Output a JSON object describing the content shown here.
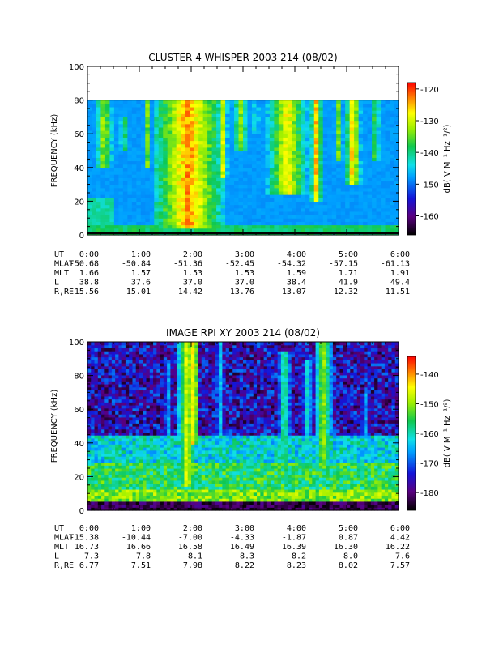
{
  "chart_data": [
    {
      "type": "heatmap",
      "title": "CLUSTER 4 WHISPER 2003 214 (08/02)",
      "ylabel": "FREQUENCY (kHz)",
      "ylim": [
        0,
        100
      ],
      "yticks": [
        "0",
        "20",
        "40",
        "60",
        "80",
        "100"
      ],
      "xlim_hours": [
        0,
        6
      ],
      "data_fmax_khz": 80,
      "colorbar": {
        "label": "dB( V M⁻¹ Hz⁻¹/²)",
        "range": [
          -166,
          -118
        ],
        "ticks": [
          "-120",
          "-130",
          "-140",
          "-150",
          "-160"
        ]
      },
      "bursts": [
        {
          "t": 0.33,
          "w": 0.22,
          "top": 80,
          "base": 40,
          "peak": -128
        },
        {
          "t": 0.7,
          "w": 0.12,
          "top": 70,
          "base": 50,
          "peak": -132
        },
        {
          "t": 1.15,
          "w": 0.08,
          "top": 80,
          "base": 40,
          "peak": -130
        },
        {
          "t": 1.95,
          "w": 0.7,
          "top": 80,
          "base": 4,
          "peak": -120
        },
        {
          "t": 2.62,
          "w": 0.1,
          "top": 80,
          "base": 35,
          "peak": -126
        },
        {
          "t": 2.95,
          "w": 0.22,
          "top": 80,
          "base": 50,
          "peak": -130
        },
        {
          "t": 3.25,
          "w": 0.12,
          "top": 80,
          "base": 60,
          "peak": -135
        },
        {
          "t": 3.85,
          "w": 0.45,
          "top": 80,
          "base": 25,
          "peak": -124
        },
        {
          "t": 4.42,
          "w": 0.12,
          "top": 80,
          "base": 20,
          "peak": -122
        },
        {
          "t": 4.85,
          "w": 0.12,
          "top": 80,
          "base": 45,
          "peak": -130
        },
        {
          "t": 5.12,
          "w": 0.16,
          "top": 80,
          "base": 30,
          "peak": -122
        },
        {
          "t": 5.55,
          "w": 0.15,
          "top": 80,
          "base": 45,
          "peak": -132
        }
      ],
      "ephemeris": {
        "labels": [
          "UT",
          "MLAT",
          "MLT",
          "L",
          "R,RE"
        ],
        "columns": [
          [
            "0:00",
            "-50.68",
            "1.66",
            "38.8",
            "15.56"
          ],
          [
            "1:00",
            "-50.84",
            "1.57",
            "37.6",
            "15.01"
          ],
          [
            "2:00",
            "-51.36",
            "1.53",
            "37.0",
            "14.42"
          ],
          [
            "3:00",
            "-52.45",
            "1.53",
            "37.0",
            "13.76"
          ],
          [
            "4:00",
            "-54.32",
            "1.59",
            "38.4",
            "13.07"
          ],
          [
            "5:00",
            "-57.15",
            "1.71",
            "41.9",
            "12.32"
          ],
          [
            "6:00",
            "-61.13",
            "1.91",
            "49.4",
            "11.51"
          ]
        ]
      }
    },
    {
      "type": "heatmap",
      "title": "IMAGE RPI XY 2003 214 (08/02)",
      "ylabel": "FREQUENCY (kHz)",
      "ylim": [
        0,
        100
      ],
      "yticks": [
        "0",
        "20",
        "40",
        "60",
        "80",
        "100"
      ],
      "xlim_hours": [
        0,
        6
      ],
      "colorbar": {
        "label": "dB( V M⁻¹ Hz⁻¹/²)",
        "range": [
          -186,
          -134
        ],
        "ticks": [
          "-140",
          "-150",
          "-160",
          "-170",
          "-180"
        ]
      },
      "bursts": [
        {
          "t": 1.92,
          "w": 0.18,
          "top": 100,
          "base": 15,
          "peak": -142
        },
        {
          "t": 2.05,
          "w": 0.1,
          "top": 100,
          "base": 40,
          "peak": -138
        },
        {
          "t": 1.55,
          "w": 0.1,
          "top": 90,
          "base": 20,
          "peak": -160
        },
        {
          "t": 2.55,
          "w": 0.1,
          "top": 100,
          "base": 20,
          "peak": -158
        },
        {
          "t": 3.8,
          "w": 0.15,
          "top": 95,
          "base": 15,
          "peak": -152
        },
        {
          "t": 4.25,
          "w": 0.12,
          "top": 90,
          "base": 15,
          "peak": -156
        },
        {
          "t": 4.55,
          "w": 0.18,
          "top": 100,
          "base": 25,
          "peak": -146
        },
        {
          "t": 5.35,
          "w": 0.1,
          "top": 70,
          "base": 15,
          "peak": -160
        }
      ],
      "ephemeris": {
        "labels": [
          "UT",
          "MLAT",
          "MLT",
          "L",
          "R,RE"
        ],
        "columns": [
          [
            "0:00",
            "-15.38",
            "16.73",
            "7.3",
            "6.77"
          ],
          [
            "1:00",
            "-10.44",
            "16.66",
            "7.8",
            "7.51"
          ],
          [
            "2:00",
            "-7.00",
            "16.58",
            "8.1",
            "7.98"
          ],
          [
            "3:00",
            "-4.33",
            "16.49",
            "8.3",
            "8.22"
          ],
          [
            "4:00",
            "-1.87",
            "16.39",
            "8.2",
            "8.23"
          ],
          [
            "5:00",
            "0.87",
            "16.30",
            "8.0",
            "8.02"
          ],
          [
            "6:00",
            "4.42",
            "16.22",
            "7.6",
            "7.57"
          ]
        ]
      }
    }
  ]
}
